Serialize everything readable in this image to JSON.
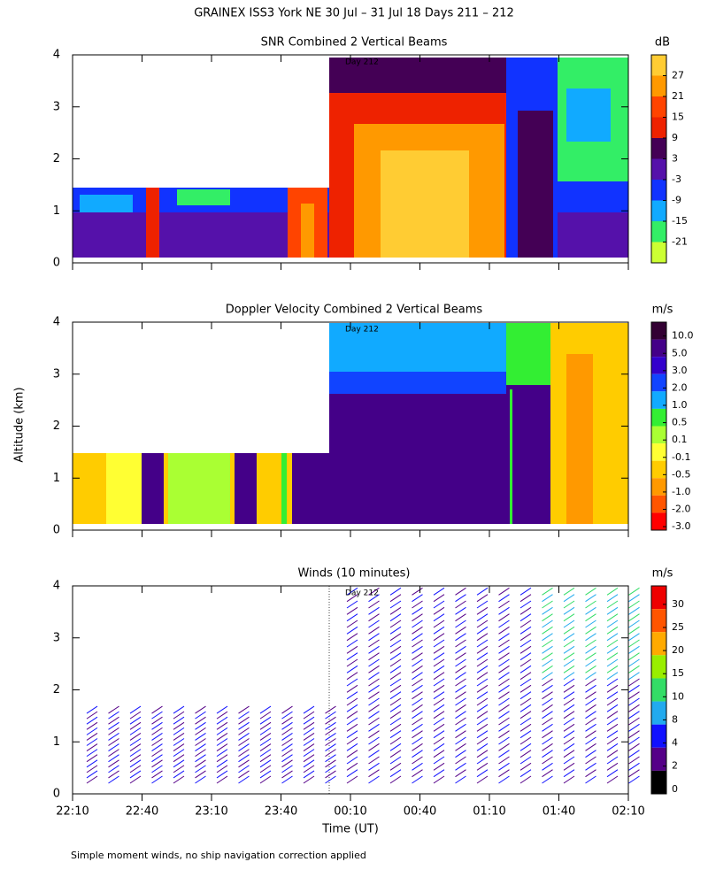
{
  "title": "GRAINEX ISS3 York NE  30 Jul – 31 Jul 18 Days 211 – 212",
  "y_label": "Altitude (km)",
  "x_label": "Time (UT)",
  "footnote": "Simple moment winds, no ship navigation correction applied",
  "chart_data": [
    {
      "type": "contour",
      "title": "SNR Combined 2 Vertical Beams",
      "annotation": "Day 212",
      "ylim": [
        0,
        4
      ],
      "yticks": [
        0,
        1,
        2,
        3,
        4
      ],
      "xticks": [
        "22:10",
        "22:40",
        "23:10",
        "23:40",
        "00:10",
        "00:40",
        "01:10",
        "01:40",
        "02:10"
      ],
      "colorbar": {
        "label": "dB",
        "ticks": [
          27,
          21,
          15,
          9,
          3,
          -3,
          -9,
          -15,
          -21
        ],
        "colors": [
          "#ffcc33",
          "#ff9900",
          "#ff4400",
          "#ee2200",
          "#440055",
          "#5511aa",
          "#1133ff",
          "#11aaff",
          "#33ee66",
          "#ccff33"
        ]
      }
    },
    {
      "type": "contour",
      "title": "Doppler Velocity Combined 2 Vertical Beams",
      "annotation": "Day 212",
      "ylim": [
        0,
        4
      ],
      "yticks": [
        0,
        1,
        2,
        3,
        4
      ],
      "xticks": [
        "22:10",
        "22:40",
        "23:10",
        "23:40",
        "00:10",
        "00:40",
        "01:10",
        "01:40",
        "02:10"
      ],
      "colorbar": {
        "label": "m/s",
        "ticks": [
          {
            "value": 10,
            "label": "10.0"
          },
          {
            "value": 5,
            "label": "5.0"
          },
          {
            "value": 3,
            "label": "3.0"
          },
          {
            "value": 2,
            "label": "2.0"
          },
          {
            "value": 1,
            "label": "1.0"
          },
          0.5,
          0.1,
          -0.1,
          -0.5,
          {
            "value": -1,
            "label": "-1.0"
          },
          {
            "value": -2,
            "label": "-2.0"
          },
          {
            "value": -3,
            "label": "-3.0"
          }
        ],
        "colors": [
          "#330033",
          "#440088",
          "#3300cc",
          "#1144ff",
          "#11aaff",
          "#33ee33",
          "#aaff33",
          "#ffff33",
          "#ffcc00",
          "#ff9900",
          "#ff5500",
          "#ff0000"
        ]
      }
    },
    {
      "type": "barbs",
      "title": "Winds (10 minutes)",
      "annotation": "Day 212",
      "ylim": [
        0,
        4
      ],
      "yticks": [
        0,
        1,
        2,
        3,
        4
      ],
      "xticks": [
        "22:10",
        "22:40",
        "23:10",
        "23:40",
        "00:10",
        "00:40",
        "01:10",
        "01:40",
        "02:10"
      ],
      "colorbar": {
        "label": "m/s",
        "ticks": [
          30,
          25,
          20,
          15,
          10,
          8,
          4,
          2,
          0
        ],
        "colors": [
          "#ee0000",
          "#ff5500",
          "#ffaa00",
          "#99ee00",
          "#33dd66",
          "#22aaee",
          "#1111ff",
          "#550088",
          "#000000"
        ]
      }
    }
  ]
}
